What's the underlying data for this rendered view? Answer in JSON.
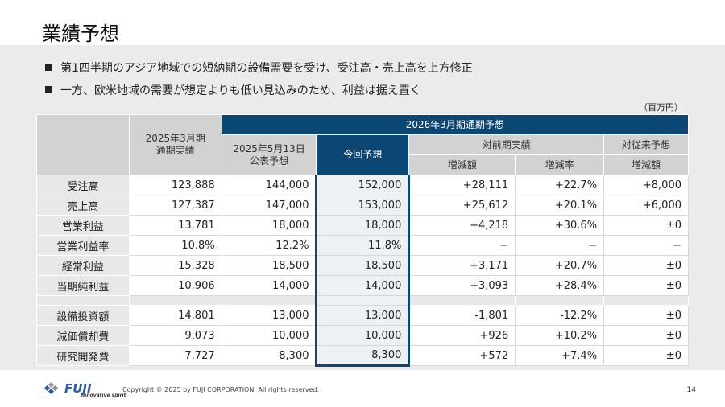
{
  "title": "業績予想",
  "bullets": [
    "第1四半期のアジア地域での短納期の設備需要を受け、受注高・売上高を上方修正",
    "一方、欧米地域の需要が想定よりも低い見込みのため、利益は据え置く"
  ],
  "unit": "（百万円）",
  "headers": {
    "actual": "2025年3月期\n通期実績",
    "fy_forecast": "2026年3月期通期予想",
    "prev_forecast": "2025年5月13日\n公表予想",
    "current": "今回予想",
    "vs_actual": "対前期実績",
    "vs_prev": "対従来予想",
    "change": "増減額",
    "rate": "増減率",
    "change2": "増減額"
  },
  "rows": [
    [
      "受注高",
      "123,888",
      "144,000",
      "152,000",
      "+28,111",
      "+22.7%",
      "+8,000"
    ],
    [
      "売上高",
      "127,387",
      "147,000",
      "153,000",
      "+25,612",
      "+20.1%",
      "+6,000"
    ],
    [
      "営業利益",
      "13,781",
      "18,000",
      "18,000",
      "+4,218",
      "+30.6%",
      "±0"
    ],
    [
      "営業利益率",
      "10.8%",
      "12.2%",
      "11.8%",
      "−",
      "−",
      "−"
    ],
    [
      "経常利益",
      "15,328",
      "18,500",
      "18,500",
      "+3,171",
      "+20.7%",
      "±0"
    ],
    [
      "当期純利益",
      "10,906",
      "14,000",
      "14,000",
      "+3,093",
      "+28.4%",
      "±0"
    ]
  ],
  "rows2": [
    [
      "設備投資額",
      "14,801",
      "13,000",
      "13,000",
      "-1,801",
      "-12.2%",
      "±0"
    ],
    [
      "減価償却費",
      "9,073",
      "10,000",
      "10,000",
      "+926",
      "+10.2%",
      "±0"
    ],
    [
      "研究開発費",
      "7,727",
      "8,300",
      "8,300",
      "+572",
      "+7.4%",
      "±0"
    ]
  ],
  "footer": {
    "logo": "FUJI",
    "tagline": "innovative spirit",
    "copyright": "Copyright © 2025 by FUJI CORPORATION. All rights reserved.",
    "page": "14"
  }
}
